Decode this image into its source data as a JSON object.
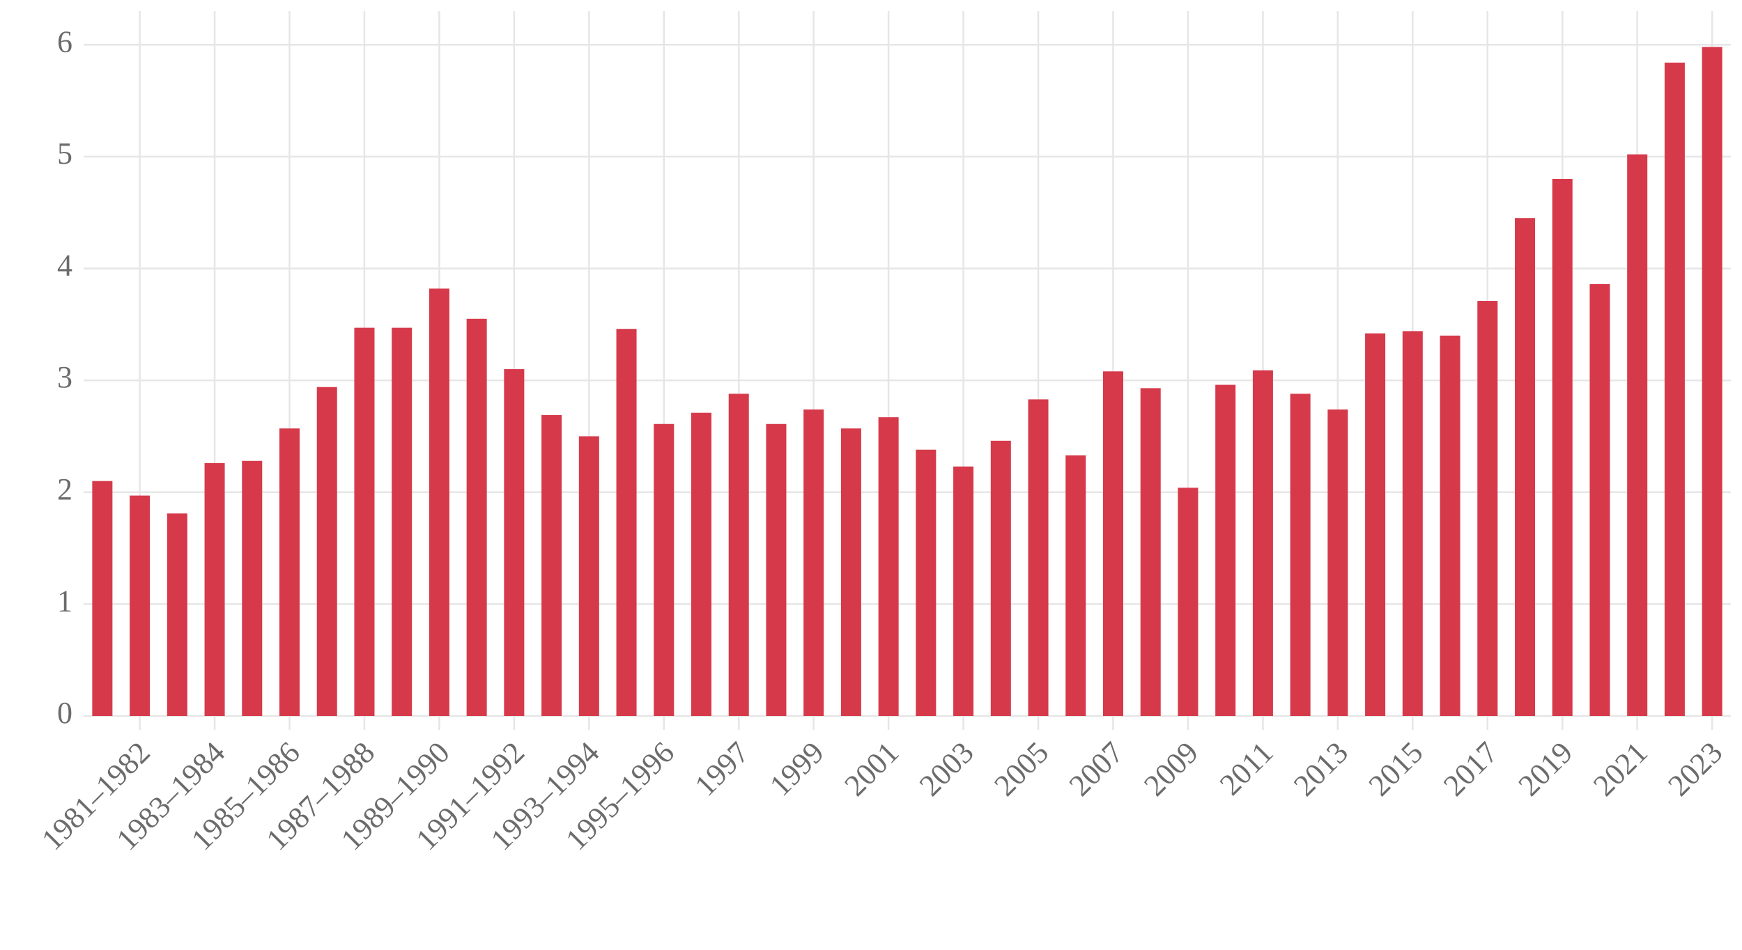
{
  "chart_data": {
    "type": "bar",
    "categories": [
      null,
      "1981–1982",
      null,
      "1983–1984",
      null,
      "1985–1986",
      null,
      "1987–1988",
      null,
      "1989–1990",
      null,
      "1991–1992",
      null,
      "1993–1994",
      null,
      "1995–1996",
      null,
      "1997",
      null,
      "1999",
      null,
      "2001",
      null,
      "2003",
      null,
      "2005",
      null,
      "2007",
      null,
      "2009",
      null,
      "2011",
      null,
      "2013",
      null,
      "2015",
      null,
      "2017",
      null,
      "2019",
      null,
      "2021",
      null,
      "2023"
    ],
    "values": [
      2.1,
      1.97,
      1.81,
      2.26,
      2.28,
      2.57,
      2.94,
      3.47,
      3.47,
      3.82,
      3.55,
      3.1,
      2.69,
      2.5,
      3.46,
      2.61,
      2.71,
      2.88,
      2.61,
      2.74,
      2.57,
      2.67,
      2.38,
      2.23,
      2.46,
      2.83,
      2.33,
      3.08,
      2.93,
      2.04,
      2.96,
      3.09,
      2.88,
      2.74,
      3.42,
      3.44,
      3.4,
      3.71,
      4.45,
      4.8,
      3.86,
      5.02,
      5.84,
      5.98
    ],
    "color": "#d63a4a",
    "ylim": [
      0,
      6.3
    ],
    "yticks": [
      0,
      1,
      2,
      3,
      4,
      5,
      6
    ],
    "grid": true
  }
}
